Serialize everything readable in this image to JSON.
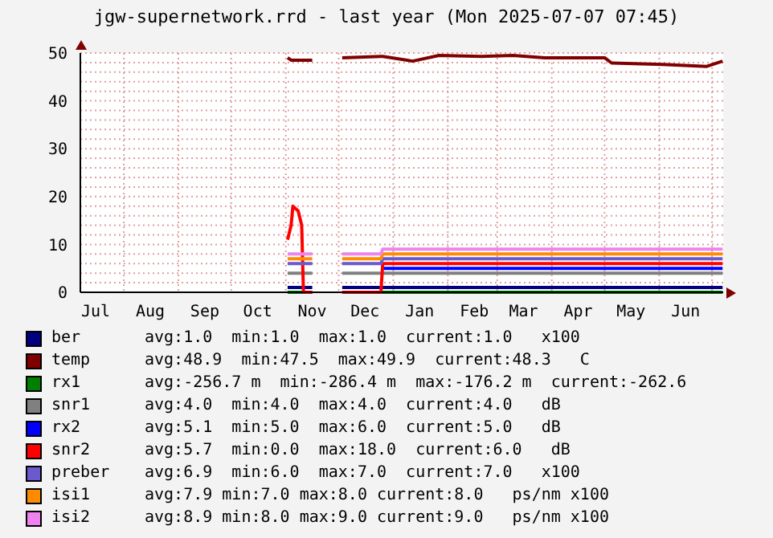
{
  "chart_data": {
    "type": "line",
    "title": "jgw-supernetwork.rrd - last year (Mon 2025-07-07 07:45)",
    "x": [
      "2024-11-02",
      "2024-11-04",
      "2024-11-05",
      "2024-11-08",
      "2024-11-10",
      "2024-11-11",
      "2024-11-16",
      "2024-11-17",
      "2024-12-03",
      "2024-12-25",
      "2024-12-26",
      "2025-01-12",
      "2025-01-27",
      "2025-02-20",
      "2025-03-10",
      "2025-03-28",
      "2025-05-01",
      "2025-05-05",
      "2025-06-03",
      "2025-06-28",
      "2025-07-07"
    ],
    "series": [
      {
        "name": "ber",
        "color": "#000080",
        "values": [
          1,
          1,
          1,
          1,
          1,
          1,
          1,
          null,
          1,
          1,
          1,
          1,
          1,
          1,
          1,
          1,
          1,
          1,
          1,
          1,
          1
        ]
      },
      {
        "name": "temp",
        "color": "#800000",
        "values": [
          49,
          48.5,
          48.5,
          48.5,
          48.5,
          48.5,
          48.5,
          null,
          49,
          49.3,
          49.3,
          48.3,
          49.5,
          49.3,
          49.5,
          49,
          49,
          47.9,
          47.6,
          47.2,
          48.3
        ]
      },
      {
        "name": "rx1",
        "color": "#008000",
        "values": [
          0,
          0,
          0,
          0,
          0,
          0,
          0,
          null,
          0,
          0,
          0,
          0,
          0,
          0,
          0,
          0,
          0,
          0,
          0,
          0,
          0
        ]
      },
      {
        "name": "snr1",
        "color": "#808080",
        "values": [
          4,
          4,
          4,
          4,
          4,
          4,
          4,
          null,
          4,
          4,
          4,
          4,
          4,
          4,
          4,
          4,
          4,
          4,
          4,
          4,
          4
        ]
      },
      {
        "name": "rx2",
        "color": "#0000ff",
        "values": [
          null,
          null,
          null,
          null,
          null,
          null,
          null,
          null,
          null,
          null,
          5,
          5,
          5,
          5,
          5,
          5,
          5,
          5,
          5,
          5,
          5
        ]
      },
      {
        "name": "snr2",
        "color": "#ff0000",
        "values": [
          11,
          14,
          18,
          17,
          14,
          0,
          0,
          null,
          0,
          0,
          6,
          6,
          6,
          6,
          6,
          6,
          6,
          6,
          6,
          6,
          6
        ]
      },
      {
        "name": "preber",
        "color": "#6a5acd",
        "values": [
          6,
          6,
          6,
          6,
          6,
          6,
          6,
          null,
          6,
          6,
          7,
          7,
          7,
          7,
          7,
          7,
          7,
          7,
          7,
          7,
          7
        ]
      },
      {
        "name": "isi1",
        "color": "#ff8c00",
        "values": [
          7,
          7,
          7,
          7,
          7,
          7,
          7,
          null,
          7,
          7,
          8,
          8,
          8,
          8,
          8,
          8,
          8,
          8,
          8,
          8,
          8
        ]
      },
      {
        "name": "isi2",
        "color": "#ee82ee",
        "values": [
          8,
          8,
          8,
          8,
          8,
          8,
          8,
          null,
          8,
          8,
          9,
          9,
          9,
          9,
          9,
          9,
          9,
          9,
          9,
          9,
          9
        ]
      }
    ],
    "annotations": [
      "avg:1.0  min:1.0  max:1.0  current:1.0   x100",
      "avg:48.9  min:47.5  max:49.9  current:48.3   C",
      "avg:-256.7 m  min:-286.4 m  max:-176.2 m  current:-262.6",
      "avg:4.0  min:4.0  max:4.0  current:4.0   dB",
      "avg:5.1  min:5.0  max:6.0  current:5.0   dB",
      "avg:5.7  min:0.0  max:18.0  current:6.0   dB",
      "avg:6.9  min:6.0  max:7.0  current:7.0   x100",
      "avg:7.9 min:7.0 max:8.0 current:8.0   ps/nm x100",
      "avg:8.9 min:8.0 max:9.0 current:9.0   ps/nm x100"
    ],
    "xlim": [
      "2024-07-07T07:45",
      "2025-07-07T07:45"
    ],
    "xticks": [
      {
        "value": "2024-07-16",
        "label": "Jul"
      },
      {
        "value": "2024-08-01",
        "label": null
      },
      {
        "value": "2024-08-16",
        "label": "Aug"
      },
      {
        "value": "2024-09-01",
        "label": null
      },
      {
        "value": "2024-09-16",
        "label": "Sep"
      },
      {
        "value": "2024-10-01",
        "label": null
      },
      {
        "value": "2024-10-16",
        "label": "Oct"
      },
      {
        "value": "2024-11-01",
        "label": null
      },
      {
        "value": "2024-11-16",
        "label": "Nov"
      },
      {
        "value": "2024-12-01",
        "label": null
      },
      {
        "value": "2024-12-16",
        "label": "Dec"
      },
      {
        "value": "2025-01-01",
        "label": null
      },
      {
        "value": "2025-01-16",
        "label": "Jan"
      },
      {
        "value": "2025-02-01",
        "label": null
      },
      {
        "value": "2025-02-16",
        "label": "Feb"
      },
      {
        "value": "2025-03-01",
        "label": null
      },
      {
        "value": "2025-03-16",
        "label": "Mar"
      },
      {
        "value": "2025-04-01",
        "label": null
      },
      {
        "value": "2025-04-16",
        "label": "Apr"
      },
      {
        "value": "2025-05-01",
        "label": null
      },
      {
        "value": "2025-05-16",
        "label": "May"
      },
      {
        "value": "2025-06-01",
        "label": null
      },
      {
        "value": "2025-06-16",
        "label": "Jun"
      },
      {
        "value": "2025-07-01",
        "label": null
      }
    ],
    "ylim": [
      0,
      50
    ],
    "yticks": [
      0,
      {
        "value": 2,
        "label": null
      },
      {
        "value": 4,
        "label": null
      },
      {
        "value": 6,
        "label": null
      },
      {
        "value": 8,
        "label": null
      },
      10,
      {
        "value": 12,
        "label": null
      },
      {
        "value": 14,
        "label": null
      },
      {
        "value": 16,
        "label": null
      },
      {
        "value": 18,
        "label": null
      },
      20,
      {
        "value": 22,
        "label": null
      },
      {
        "value": 24,
        "label": null
      },
      {
        "value": 26,
        "label": null
      },
      {
        "value": 28,
        "label": null
      },
      30,
      {
        "value": 32,
        "label": null
      },
      {
        "value": 34,
        "label": null
      },
      {
        "value": 36,
        "label": null
      },
      {
        "value": 38,
        "label": null
      },
      40,
      {
        "value": 42,
        "label": null
      },
      {
        "value": 44,
        "label": null
      },
      {
        "value": 46,
        "label": null
      },
      {
        "value": 48,
        "label": null
      },
      50
    ],
    "grid": true,
    "legend": "bottom",
    "marker": "none",
    "line_style": "solid"
  }
}
